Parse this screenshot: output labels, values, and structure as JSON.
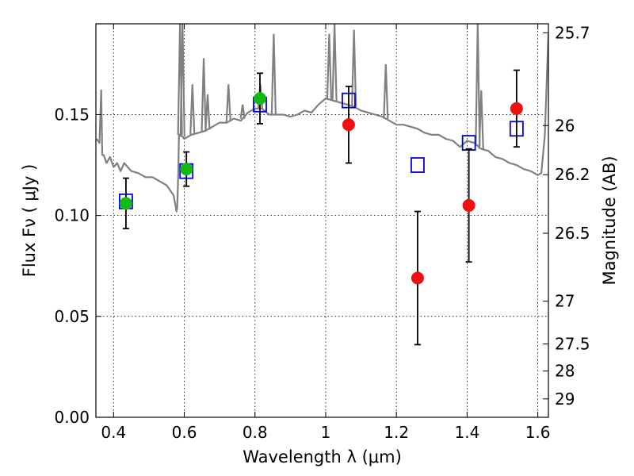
{
  "chart_data": {
    "type": "scatter",
    "title": "",
    "xlabel": "Wavelength  λ (μm)",
    "ylabel": "Flux  Fν  ( μJy )",
    "y2label": "Magnitude (AB)",
    "xlim": [
      0.35,
      1.63
    ],
    "ylim": [
      0.0,
      0.195
    ],
    "grid": true,
    "legend": "none",
    "x_ticks": [
      {
        "v": 0.4,
        "label": "0.4"
      },
      {
        "v": 0.6,
        "label": "0.6"
      },
      {
        "v": 0.8,
        "label": "0.8"
      },
      {
        "v": 1.0,
        "label": "1"
      },
      {
        "v": 1.2,
        "label": "1.2"
      },
      {
        "v": 1.4,
        "label": "1.4"
      },
      {
        "v": 1.6,
        "label": "1.6"
      }
    ],
    "y_ticks": [
      {
        "v": 0.0,
        "label": "0.00"
      },
      {
        "v": 0.05,
        "label": "0.05"
      },
      {
        "v": 0.1,
        "label": "0.10"
      },
      {
        "v": 0.15,
        "label": "0.15"
      }
    ],
    "y2_ticks": [
      {
        "mag": 25.7,
        "label": "25.7"
      },
      {
        "mag": 26.0,
        "label": "26"
      },
      {
        "mag": 26.2,
        "label": "26.2"
      },
      {
        "mag": 26.5,
        "label": "26.5"
      },
      {
        "mag": 27.0,
        "label": "27"
      },
      {
        "mag": 27.5,
        "label": "27.5"
      },
      {
        "mag": 28.0,
        "label": "28"
      },
      {
        "mag": 29.0,
        "label": "29"
      }
    ],
    "series": [
      {
        "kind": "sed_model_line",
        "color": "#808080",
        "x": [
          0.352,
          0.36,
          0.365,
          0.368,
          0.372,
          0.38,
          0.39,
          0.4,
          0.41,
          0.42,
          0.43,
          0.44,
          0.45,
          0.47,
          0.49,
          0.51,
          0.53,
          0.55,
          0.57,
          0.575,
          0.578,
          0.58,
          0.583,
          0.585,
          0.59,
          0.6,
          0.62,
          0.64,
          0.66,
          0.68,
          0.7,
          0.72,
          0.74,
          0.76,
          0.78,
          0.8,
          0.82,
          0.84,
          0.86,
          0.88,
          0.9,
          0.92,
          0.94,
          0.96,
          0.98,
          1.0,
          1.02,
          1.04,
          1.06,
          1.08,
          1.1,
          1.12,
          1.14,
          1.16,
          1.18,
          1.2,
          1.22,
          1.24,
          1.26,
          1.28,
          1.3,
          1.32,
          1.34,
          1.36,
          1.38,
          1.4,
          1.42,
          1.44,
          1.46,
          1.48,
          1.5,
          1.52,
          1.54,
          1.56,
          1.58,
          1.6,
          1.61,
          1.62,
          1.63
        ],
        "y": [
          0.138,
          0.136,
          0.162,
          0.13,
          0.13,
          0.126,
          0.129,
          0.124,
          0.126,
          0.122,
          0.126,
          0.124,
          0.122,
          0.121,
          0.119,
          0.119,
          0.117,
          0.115,
          0.11,
          0.105,
          0.102,
          0.104,
          0.12,
          0.14,
          0.14,
          0.138,
          0.14,
          0.141,
          0.142,
          0.144,
          0.146,
          0.146,
          0.148,
          0.147,
          0.151,
          0.153,
          0.153,
          0.15,
          0.15,
          0.15,
          0.149,
          0.15,
          0.152,
          0.151,
          0.155,
          0.158,
          0.157,
          0.156,
          0.155,
          0.154,
          0.152,
          0.151,
          0.15,
          0.149,
          0.147,
          0.145,
          0.145,
          0.144,
          0.143,
          0.141,
          0.14,
          0.14,
          0.138,
          0.137,
          0.134,
          0.137,
          0.136,
          0.133,
          0.132,
          0.129,
          0.128,
          0.126,
          0.125,
          0.123,
          0.122,
          0.12,
          0.121,
          0.14,
          0.19
        ]
      },
      {
        "kind": "model_photometry",
        "marker": "open-square",
        "color": "#0000dd",
        "x": [
          0.435,
          0.606,
          0.814,
          1.065,
          1.26,
          1.405,
          1.54
        ],
        "y": [
          0.107,
          0.122,
          0.155,
          0.157,
          0.125,
          0.136,
          0.143
        ]
      },
      {
        "kind": "observed_optical",
        "marker": "filled-circle",
        "color": "#11bb11",
        "x": [
          0.435,
          0.606,
          0.814
        ],
        "y": [
          0.106,
          0.123,
          0.158
        ],
        "yerr": [
          0.0125,
          0.0085,
          0.0125
        ]
      },
      {
        "kind": "observed_nir",
        "marker": "filled-circle",
        "color": "#ee1111",
        "x": [
          1.065,
          1.26,
          1.405,
          1.54
        ],
        "y": [
          0.145,
          0.069,
          0.105,
          0.153
        ],
        "yerr": [
          0.019,
          0.033,
          0.028,
          0.019
        ]
      }
    ],
    "spikes": [
      {
        "x": 0.588,
        "top": 0.195
      },
      {
        "x": 0.595,
        "top": 0.195
      },
      {
        "x": 0.623,
        "top": 0.165
      },
      {
        "x": 0.655,
        "top": 0.178
      },
      {
        "x": 0.666,
        "top": 0.16
      },
      {
        "x": 0.725,
        "top": 0.165
      },
      {
        "x": 0.765,
        "top": 0.155
      },
      {
        "x": 0.815,
        "top": 0.165
      },
      {
        "x": 0.853,
        "top": 0.19
      },
      {
        "x": 1.01,
        "top": 0.19
      },
      {
        "x": 1.025,
        "top": 0.195
      },
      {
        "x": 1.08,
        "top": 0.192
      },
      {
        "x": 1.17,
        "top": 0.175
      },
      {
        "x": 1.43,
        "top": 0.195
      },
      {
        "x": 1.44,
        "top": 0.162
      }
    ]
  }
}
